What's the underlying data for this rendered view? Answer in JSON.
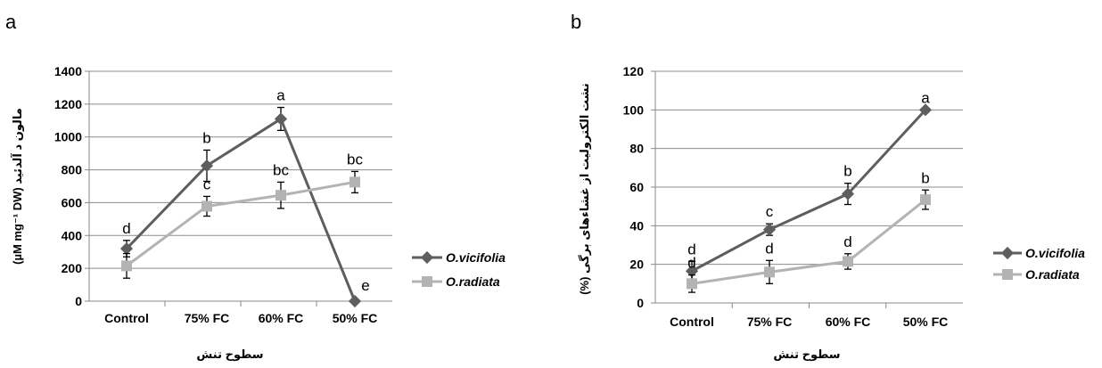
{
  "chart_data": [
    {
      "type": "line",
      "panel_label": "a",
      "categories": [
        "Control",
        "75% FC",
        "60% FC",
        "50% FC"
      ],
      "ylabel": "(µM mg⁻¹ DW) مالون د آلدئید",
      "xlabel": "سطوح تنش",
      "ylim": [
        0,
        1400
      ],
      "yticks": [
        "0",
        "200",
        "400",
        "600",
        "800",
        "1000",
        "1200",
        "1400"
      ],
      "grid": true,
      "legend_position": "right",
      "series": [
        {
          "name": "O.vicifolia",
          "color": "#5e5e5e",
          "marker": "diamond",
          "values": [
            320,
            825,
            1110,
            0
          ],
          "errors": [
            50,
            95,
            70,
            0
          ],
          "letters": [
            "d",
            "b",
            "a",
            "e"
          ]
        },
        {
          "name": "O.radiata",
          "color": "#b3b3b3",
          "marker": "square",
          "values": [
            215,
            578,
            645,
            725
          ],
          "errors": [
            75,
            60,
            80,
            65
          ],
          "letters": [
            "",
            "c",
            "bc",
            "bc"
          ]
        }
      ]
    },
    {
      "type": "line",
      "panel_label": "b",
      "categories": [
        "Control",
        "75% FC",
        "60% FC",
        "50% FC"
      ],
      "ylabel": "(%) نشت الکترولیت از غشاءهای برگی",
      "xlabel": "سطوح تنش",
      "ylim": [
        0,
        120
      ],
      "yticks": [
        "0",
        "20",
        "40",
        "60",
        "80",
        "100",
        "120"
      ],
      "grid": true,
      "legend_position": "right",
      "series": [
        {
          "name": "O.vicifolia",
          "color": "#5e5e5e",
          "marker": "diamond",
          "values": [
            16.5,
            38,
            56.5,
            100
          ],
          "errors": [
            5,
            3,
            5.5,
            0
          ],
          "letters": [
            "d",
            "c",
            "b",
            "a"
          ]
        },
        {
          "name": "O.radiata",
          "color": "#b3b3b3",
          "marker": "square",
          "values": [
            10,
            16,
            21.5,
            53.5
          ],
          "errors": [
            4.5,
            6,
            4,
            5
          ],
          "letters": [
            "d",
            "d",
            "d",
            "b"
          ]
        }
      ]
    }
  ]
}
